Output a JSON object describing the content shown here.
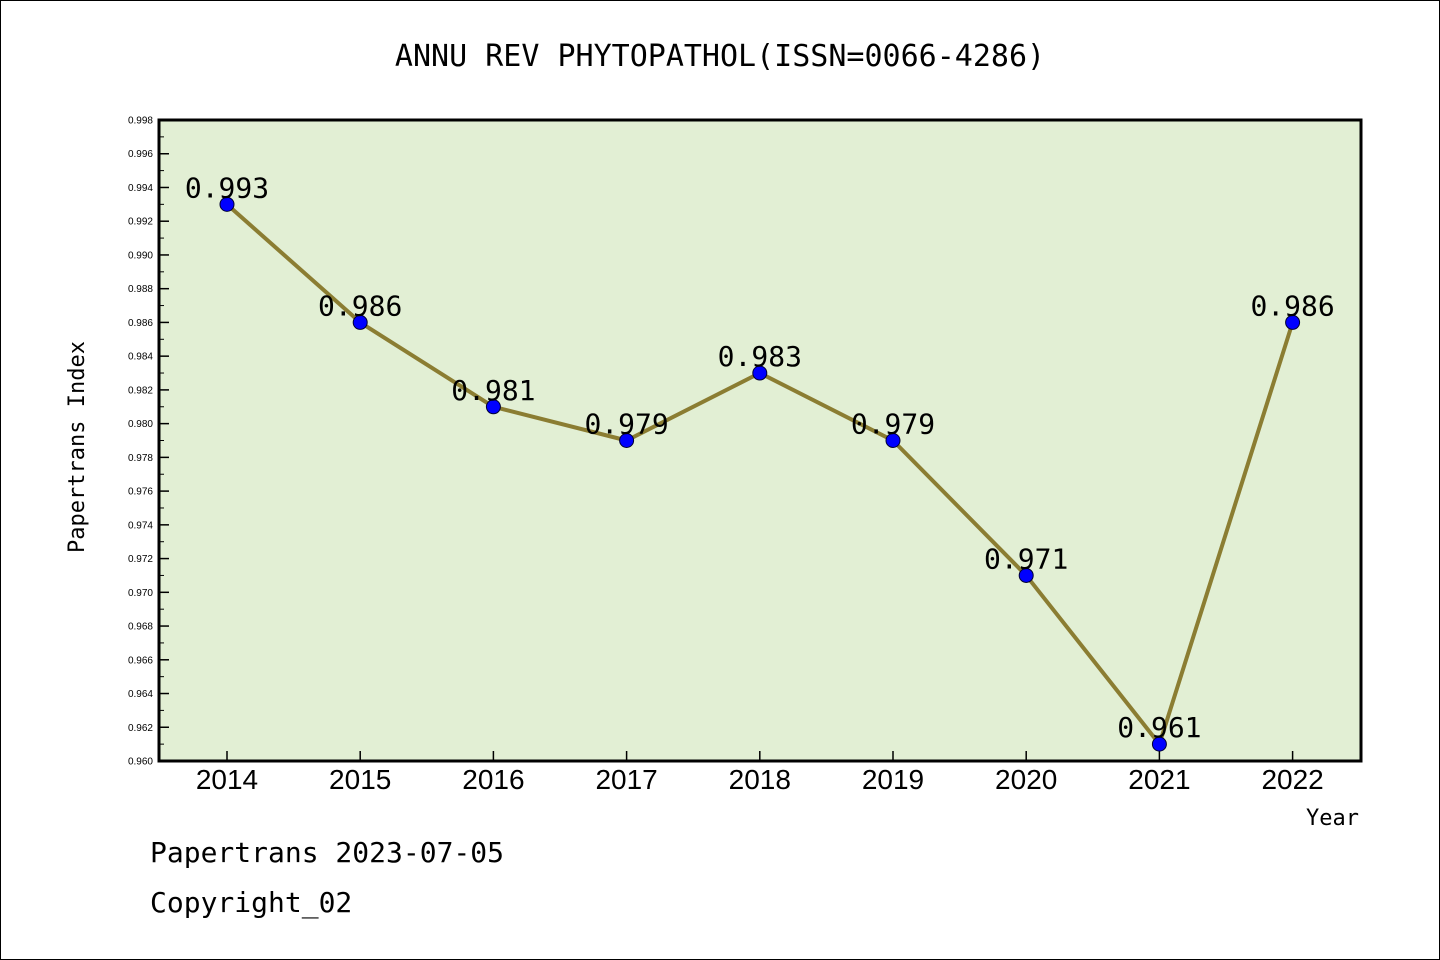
{
  "chart_data": {
    "type": "line",
    "title": "ANNU REV PHYTOPATHOL(ISSN=0066-4286)",
    "xlabel": "Year",
    "ylabel": "Papertrans Index",
    "categories": [
      "2014",
      "2015",
      "2016",
      "2017",
      "2018",
      "2019",
      "2020",
      "2021",
      "2022"
    ],
    "series": [
      {
        "values": [
          0.993,
          0.986,
          0.981,
          0.979,
          0.983,
          0.979,
          0.971,
          0.961,
          0.986
        ]
      }
    ],
    "data_labels": [
      "0.993",
      "0.986",
      "0.981",
      "0.979",
      "0.983",
      "0.979",
      "0.971",
      "0.961",
      "0.986"
    ],
    "ylim": [
      0.96,
      0.998
    ],
    "yticks": [
      "0.960",
      "0.962",
      "0.964",
      "0.966",
      "0.968",
      "0.970",
      "0.972",
      "0.974",
      "0.976",
      "0.978",
      "0.980",
      "0.982",
      "0.984",
      "0.986",
      "0.988",
      "0.990",
      "0.992",
      "0.994",
      "0.996",
      "0.998"
    ],
    "grid": false,
    "legend": "none",
    "colors": {
      "plot_bg": "#e2efd4",
      "line": "#8b7d32",
      "marker": "#0000ff",
      "marker_edge": "#000033"
    }
  },
  "footer": {
    "line1": "Papertrans 2023-07-05",
    "line2": "Copyright_02"
  }
}
